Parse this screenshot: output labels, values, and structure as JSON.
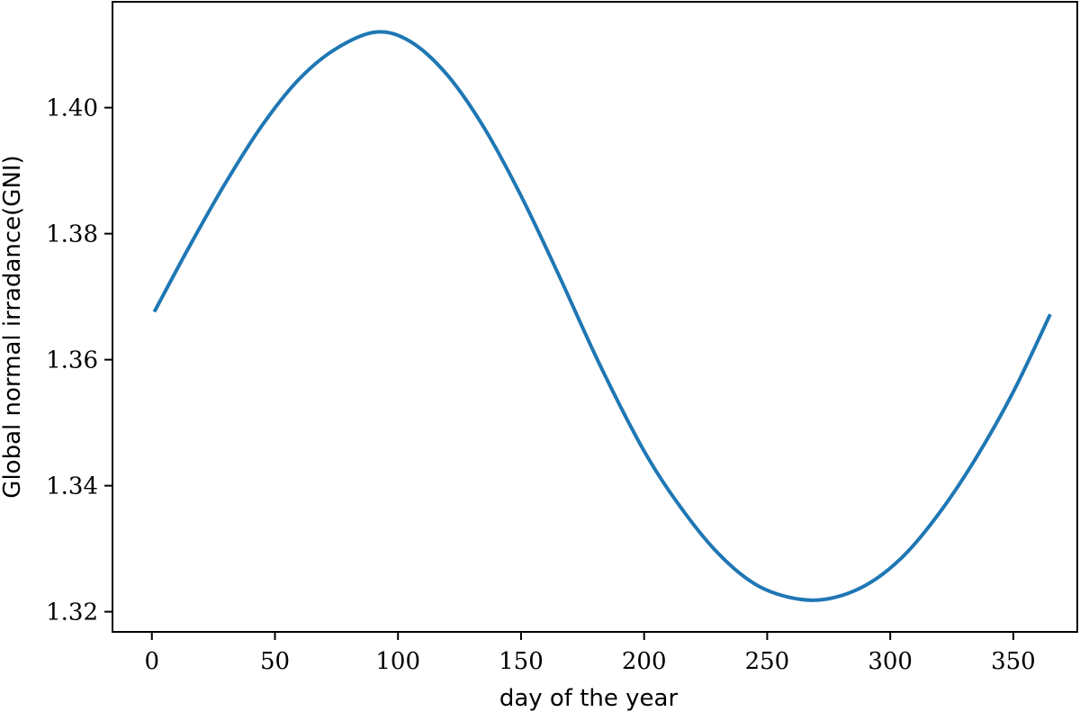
{
  "chart_data": {
    "type": "line",
    "title": "",
    "xlabel": "day of the year",
    "ylabel": "Global normal irradance(GNI)",
    "xlim": [
      -16,
      376
    ],
    "ylim": [
      1.3168,
      1.4168
    ],
    "xticks": [
      0,
      50,
      100,
      150,
      200,
      250,
      300,
      350
    ],
    "xtick_labels": [
      "0",
      "50",
      "100",
      "150",
      "200",
      "250",
      "300",
      "350"
    ],
    "yticks": [
      1.32,
      1.34,
      1.36,
      1.38,
      1.4
    ],
    "ytick_labels": [
      "1.32",
      "1.34",
      "1.36",
      "1.38",
      "1.40"
    ],
    "grid": false,
    "legend": "none",
    "series": [
      {
        "color": "#1f77b4",
        "x": [
          1,
          15,
          30,
          45,
          60,
          75,
          91,
          105,
          120,
          135,
          150,
          165,
          182,
          200,
          215,
          230,
          245,
          260,
          274,
          290,
          305,
          320,
          335,
          350,
          365
        ],
        "y": [
          1.3676,
          1.3778,
          1.3881,
          1.3973,
          1.4046,
          1.4094,
          1.412,
          1.4105,
          1.4052,
          1.3968,
          1.386,
          1.3737,
          1.3592,
          1.3455,
          1.3365,
          1.3293,
          1.3244,
          1.3222,
          1.322,
          1.3242,
          1.3287,
          1.3357,
          1.3445,
          1.3549,
          1.3672
        ]
      }
    ]
  }
}
